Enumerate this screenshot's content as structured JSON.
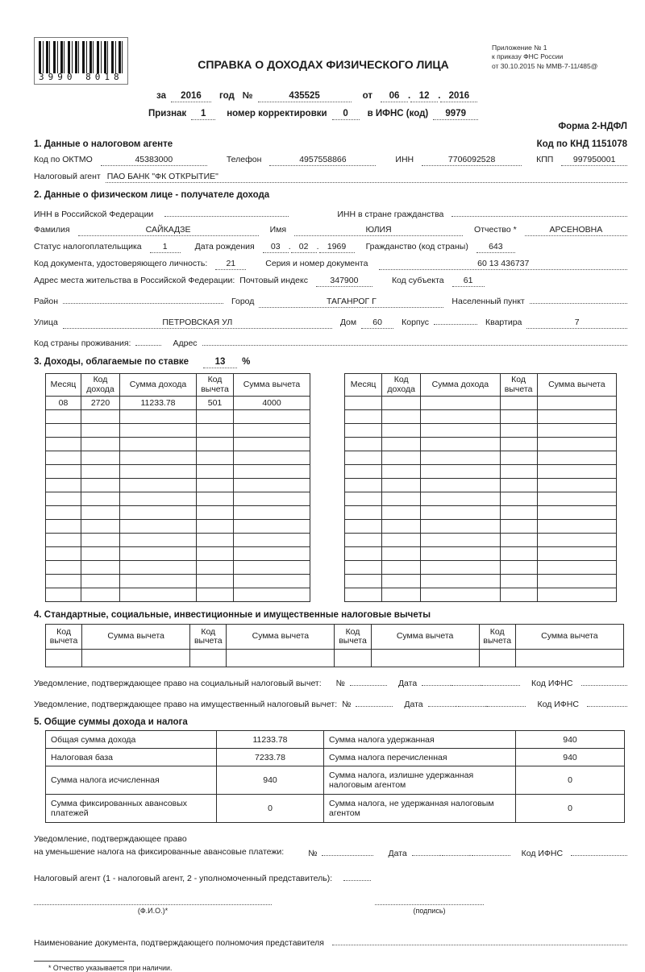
{
  "common": {
    "dot": "."
  },
  "header": {
    "barcode_text": "3990 8018",
    "title": "СПРАВКА О ДОХОДАХ ФИЗИЧЕСКОГО ЛИЦА",
    "appendix_line1": "Приложение № 1",
    "appendix_line2": "к приказу ФНС России",
    "appendix_line3": "от 30.10.2015 № ММВ-7-11/485@",
    "za_label": "за",
    "year": "2016",
    "god_label": "год",
    "no_label": "№",
    "number": "435525",
    "ot_label": "от",
    "date_day": "06",
    "date_month": "12",
    "date_year": "2016",
    "priznak_label": "Признак",
    "priznak": "1",
    "korr_label": "номер корректировки",
    "korr": "0",
    "ifns_label": "в ИФНС (код)",
    "ifns": "9979",
    "form_label": "Форма 2-НДФЛ",
    "knd_label": "Код по КНД 1151078"
  },
  "section1": {
    "heading": "1. Данные о налоговом агенте",
    "oktmo_label": "Код по ОКТМО",
    "oktmo": "45383000",
    "phone_label": "Телефон",
    "phone": "4957558866",
    "inn_label": "ИНН",
    "inn": "7706092528",
    "kpp_label": "КПП",
    "kpp": "997950001",
    "agent_label": "Налоговый агент",
    "agent": "ПАО БАНК \"ФК ОТКРЫТИЕ\""
  },
  "section2": {
    "heading": "2. Данные о физическом лице - получателе дохода",
    "inn_rf_label": "ИНН в Российской Федерации",
    "inn_foreign_label": "ИНН в стране гражданства",
    "surname_label": "Фамилия",
    "surname": "САЙКАДЗЕ",
    "name_label": "Имя",
    "name": "ЮЛИЯ",
    "patronymic_label": "Отчество *",
    "patronymic": "АРСЕНОВНА",
    "status_label": "Статус налогоплательщика",
    "status": "1",
    "birth_label": "Дата рождения",
    "birth_day": "03",
    "birth_month": "02",
    "birth_year": "1969",
    "citizenship_label": "Гражданство (код страны)",
    "citizenship": "643",
    "doc_code_label": "Код документа, удостоверяющего личность:",
    "doc_code": "21",
    "doc_series_label": "Серия и номер документа",
    "doc_series": "60 13 436737",
    "address_label": "Адрес места жительства в Российской Федерации:",
    "postcode_label": "Почтовый индекс",
    "postcode": "347900",
    "region_code_label": "Код субъекта",
    "region_code": "61",
    "district_label": "Район",
    "city_label": "Город",
    "city": "ТАГАНРОГ Г",
    "settlement_label": "Населенный пункт",
    "street_label": "Улица",
    "street": "ПЕТРОВСКАЯ УЛ",
    "house_label": "Дом",
    "house": "60",
    "building_label": "Корпус",
    "flat_label": "Квартира",
    "flat": "7",
    "country_label": "Код страны проживания:",
    "address2_label": "Адрес"
  },
  "section3": {
    "heading": "3. Доходы, облагаемые по ставке",
    "rate": "13",
    "percent_label": "%",
    "col_month": "Месяц",
    "col_income_code": "Код дохода",
    "col_income": "Сумма дохода",
    "col_deduct_code": "Код вычета",
    "col_deduct": "Сумма вычета",
    "row": {
      "month": "08",
      "income_code": "2720",
      "income": "11233.78",
      "deduct_code": "501",
      "deduct": "4000"
    }
  },
  "section4": {
    "heading": "4. Стандартные, социальные, инвестиционные и имущественные налоговые вычеты",
    "col_code": "Код вычета",
    "col_sum": "Сумма вычета",
    "notice_social": "Уведомление, подтверждающее право на социальный налоговый вычет:",
    "notice_property": "Уведомление, подтверждающее право на имущественный налоговый вычет:",
    "no_label": "№",
    "date_label": "Дата",
    "ifns_label": "Код ИФНС"
  },
  "section5": {
    "heading": "5. Общие суммы дохода и налога",
    "rows": [
      {
        "l1": "Общая сумма дохода",
        "v1": "11233.78",
        "l2": "Сумма налога удержанная",
        "v2": "940"
      },
      {
        "l1": "Налоговая база",
        "v1": "7233.78",
        "l2": "Сумма налога перечисленная",
        "v2": "940"
      },
      {
        "l1": "Сумма налога исчисленная",
        "v1": "940",
        "l2": "Сумма налога, излишне удержанная налоговым агентом",
        "v2": "0"
      },
      {
        "l1": "Сумма фиксированных авансовых платежей",
        "v1": "0",
        "l2": "Сумма налога, не удержанная налоговым агентом",
        "v2": "0"
      }
    ]
  },
  "footer": {
    "notice_line1": "Уведомление, подтверждающее право",
    "notice_line2": "на уменьшение налога на фиксированные авансовые платежи:",
    "no_label": "№",
    "date_label": "Дата",
    "ifns_label": "Код ИФНС",
    "agent_line": "Налоговый агент (1 - налоговый агент, 2 - уполномоченный представитель):",
    "fio_label": "(Ф.И.О.)*",
    "sign_label": "(подпись)",
    "doc_name_label": "Наименование документа, подтверждающего полномочия представителя",
    "footnote": "* Отчество указывается при наличии."
  }
}
